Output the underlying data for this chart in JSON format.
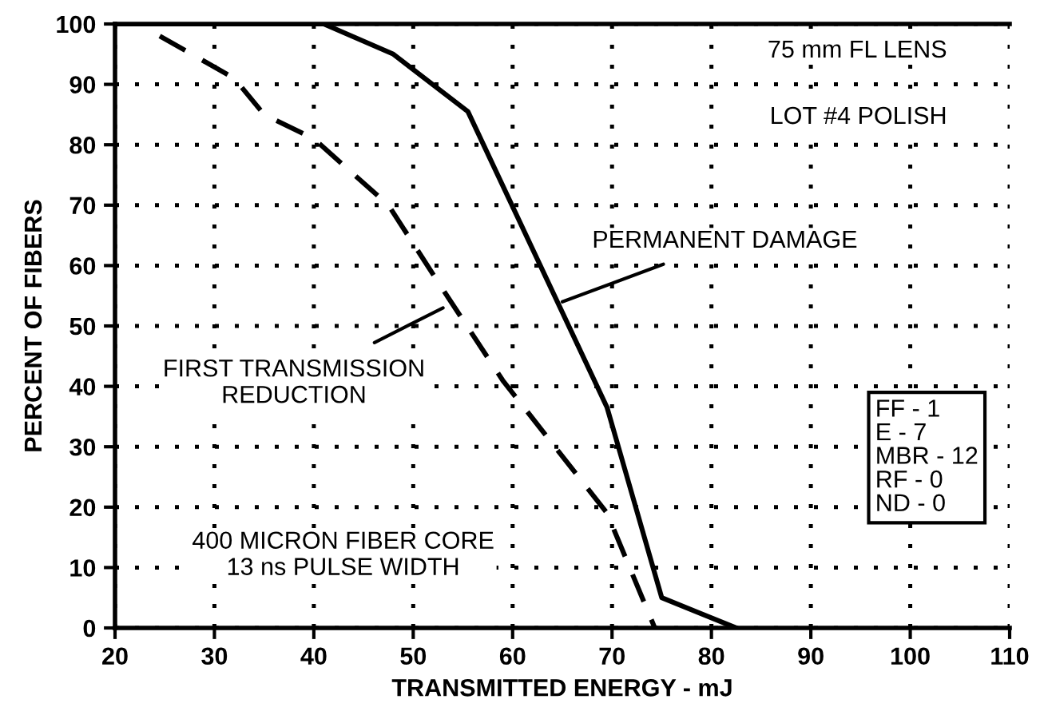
{
  "chart_data": {
    "type": "line",
    "xlabel": "TRANSMITTED ENERGY - mJ",
    "ylabel": "PERCENT OF FIBERS",
    "xlim": [
      20,
      110
    ],
    "ylim": [
      0,
      100
    ],
    "xticks": [
      20,
      30,
      40,
      50,
      60,
      70,
      80,
      90,
      100,
      110
    ],
    "yticks": [
      0,
      10,
      20,
      30,
      40,
      50,
      60,
      70,
      80,
      90,
      100
    ],
    "grid": true,
    "legend": false,
    "marker": "none",
    "series": [
      {
        "color": "#000000",
        "line_style": "solid",
        "x": [
          20,
          41,
          48,
          55.5,
          69.5,
          75,
          82.5
        ],
        "values": [
          100,
          100,
          95,
          85.5,
          36.5,
          5,
          0
        ]
      },
      {
        "color": "#000000",
        "line_style": "dashed",
        "x": [
          24.5,
          32,
          35,
          40,
          47.5,
          53,
          59,
          69.5,
          74.3
        ],
        "values": [
          98,
          91,
          85,
          81,
          70,
          56,
          41,
          19,
          0
        ]
      }
    ],
    "annotations": [
      "75 mm FL LENS",
      "LOT #4 POLISH",
      {
        "text": "PERMANENT DAMAGE",
        "x": 65,
        "y": 54
      },
      {
        "text": "FIRST TRANSMISSION\nREDUCTION",
        "x": 53,
        "y": 53
      },
      "FF - 1\nE - 7\nMBR - 12\nRF - 0\nND - 0",
      "400 MICRON FIBER CORE\n13 ns PULSE WIDTH"
    ]
  }
}
